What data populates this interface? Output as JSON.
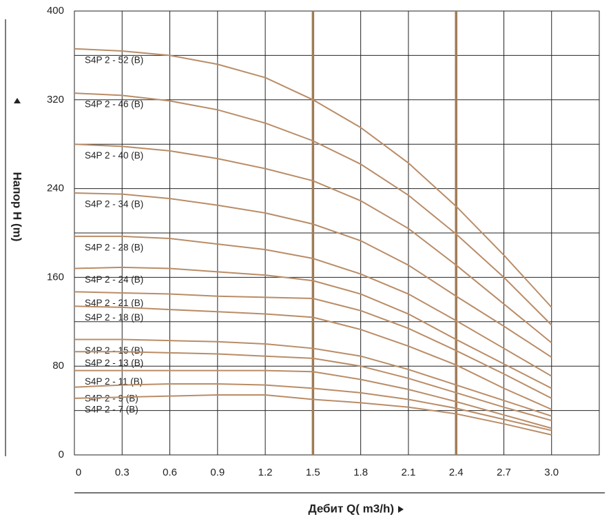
{
  "chart_data": {
    "type": "line",
    "x_label": "Дебит Q( m3/h)",
    "y_label": "Напор H (m)",
    "x": [
      0,
      0.3,
      0.6,
      0.9,
      1.2,
      1.5,
      1.8,
      2.1,
      2.4,
      2.7,
      3.0
    ],
    "xlim": [
      0,
      3.3
    ],
    "ylim": [
      0,
      400
    ],
    "xticks": [
      0,
      0.3,
      0.6,
      0.9,
      1.2,
      1.5,
      1.8,
      2.1,
      2.4,
      2.7,
      {
        "value": 3.0,
        "label": "3.0"
      }
    ],
    "yticks": [
      0,
      80,
      160,
      240,
      320,
      400
    ],
    "grid": true,
    "minor_grid": true,
    "highlight_x": [
      1.5,
      2.4
    ],
    "highlight_color": "#a07a55",
    "series": [
      {
        "name": "S4P 2 - 52 (B)",
        "color": "#b98c66",
        "values": [
          366,
          364,
          360,
          352,
          340,
          320,
          295,
          263,
          224,
          180,
          133
        ]
      },
      {
        "name": "S4P 2 - 46 (B)",
        "color": "#b98c66",
        "values": [
          326,
          324,
          319,
          311,
          299,
          283,
          262,
          234,
          199,
          160,
          117
        ]
      },
      {
        "name": "S4P 2 - 40 (B)",
        "color": "#b98c66",
        "values": [
          280,
          278,
          274,
          267,
          258,
          247,
          229,
          204,
          171,
          136,
          101
        ]
      },
      {
        "name": "S4P 2 - 34 (B)",
        "color": "#b98c66",
        "values": [
          236,
          235,
          231,
          225,
          218,
          208,
          193,
          171,
          143,
          116,
          88
        ]
      },
      {
        "name": "S4P 2 - 28 (B)",
        "color": "#b98c66",
        "values": [
          197,
          197,
          195,
          190,
          185,
          177,
          163,
          145,
          121,
          96,
          71
        ]
      },
      {
        "name": "S4P 2 - 24 (B)",
        "color": "#b98c66",
        "values": [
          168,
          169,
          168,
          165,
          162,
          157,
          145,
          127,
          104,
          82,
          60
        ]
      },
      {
        "name": "S4P 2 - 21 (B)",
        "color": "#b98c66",
        "values": [
          147,
          146,
          145,
          143,
          142,
          141,
          130,
          114,
          94,
          73,
          51
        ]
      },
      {
        "name": "S4P 2 - 18 (B)",
        "color": "#b98c66",
        "values": [
          134,
          133,
          131,
          129,
          127,
          124,
          113,
          98,
          81,
          60,
          41
        ]
      },
      {
        "name": "S4P 2 - 15 (B)",
        "color": "#b98c66",
        "values": [
          104,
          104,
          103,
          102,
          100,
          96,
          89,
          77,
          63,
          49,
          35
        ]
      },
      {
        "name": "S4P 2 - 13 (B)",
        "color": "#b98c66",
        "values": [
          93,
          93,
          92,
          91,
          89,
          87,
          80,
          69,
          56,
          43,
          31
        ]
      },
      {
        "name": "S4P 2 - 11 (B)",
        "color": "#b98c66",
        "values": [
          76,
          76,
          76,
          76,
          76,
          75,
          68,
          59,
          48,
          36,
          24
        ]
      },
      {
        "name": "S4P 2 - 9 (B)",
        "color": "#b98c66",
        "values": [
          61,
          63,
          64,
          64,
          63,
          60,
          56,
          50,
          42,
          32,
          22
        ]
      },
      {
        "name": "S4P 2 - 7 (B)",
        "color": "#b98c66",
        "values": [
          51,
          52,
          53,
          54,
          54,
          50,
          47,
          43,
          37,
          28,
          18
        ]
      }
    ]
  }
}
